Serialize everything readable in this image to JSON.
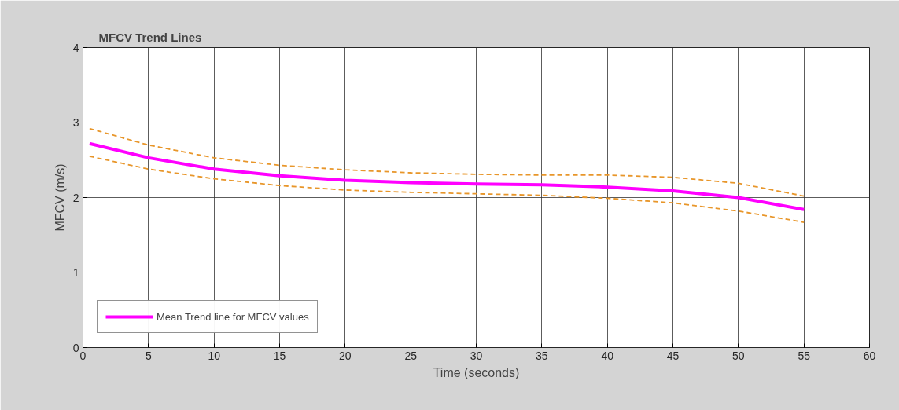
{
  "chart_data": {
    "type": "line",
    "title": "MFCV Trend Lines",
    "xlabel": "Time (seconds)",
    "ylabel": "MFCV (m/s)",
    "x": [
      0.5,
      5,
      10,
      15,
      20,
      25,
      30,
      35,
      40,
      45,
      50,
      55
    ],
    "series": [
      {
        "name": "Mean Trend line for MFCV values",
        "color": "#ff00ff",
        "line_style": "solid",
        "values": [
          2.72,
          2.53,
          2.38,
          2.29,
          2.23,
          2.2,
          2.18,
          2.17,
          2.14,
          2.09,
          2.0,
          1.84
        ]
      },
      {
        "color": "#e8962a",
        "line_style": "dashed",
        "values": [
          2.92,
          2.7,
          2.53,
          2.43,
          2.37,
          2.33,
          2.31,
          2.3,
          2.3,
          2.27,
          2.19,
          2.02
        ]
      },
      {
        "color": "#e8962a",
        "line_style": "dashed",
        "values": [
          2.55,
          2.38,
          2.25,
          2.16,
          2.1,
          2.07,
          2.05,
          2.03,
          1.99,
          1.93,
          1.82,
          1.67
        ]
      }
    ],
    "xlim": [
      0,
      60
    ],
    "xticks": [
      0,
      5,
      10,
      15,
      20,
      25,
      30,
      35,
      40,
      45,
      50,
      55,
      60
    ],
    "ylim": [
      0,
      4
    ],
    "yticks": [
      0,
      1,
      2,
      3,
      4
    ],
    "grid": true,
    "legend": "bottom left"
  }
}
